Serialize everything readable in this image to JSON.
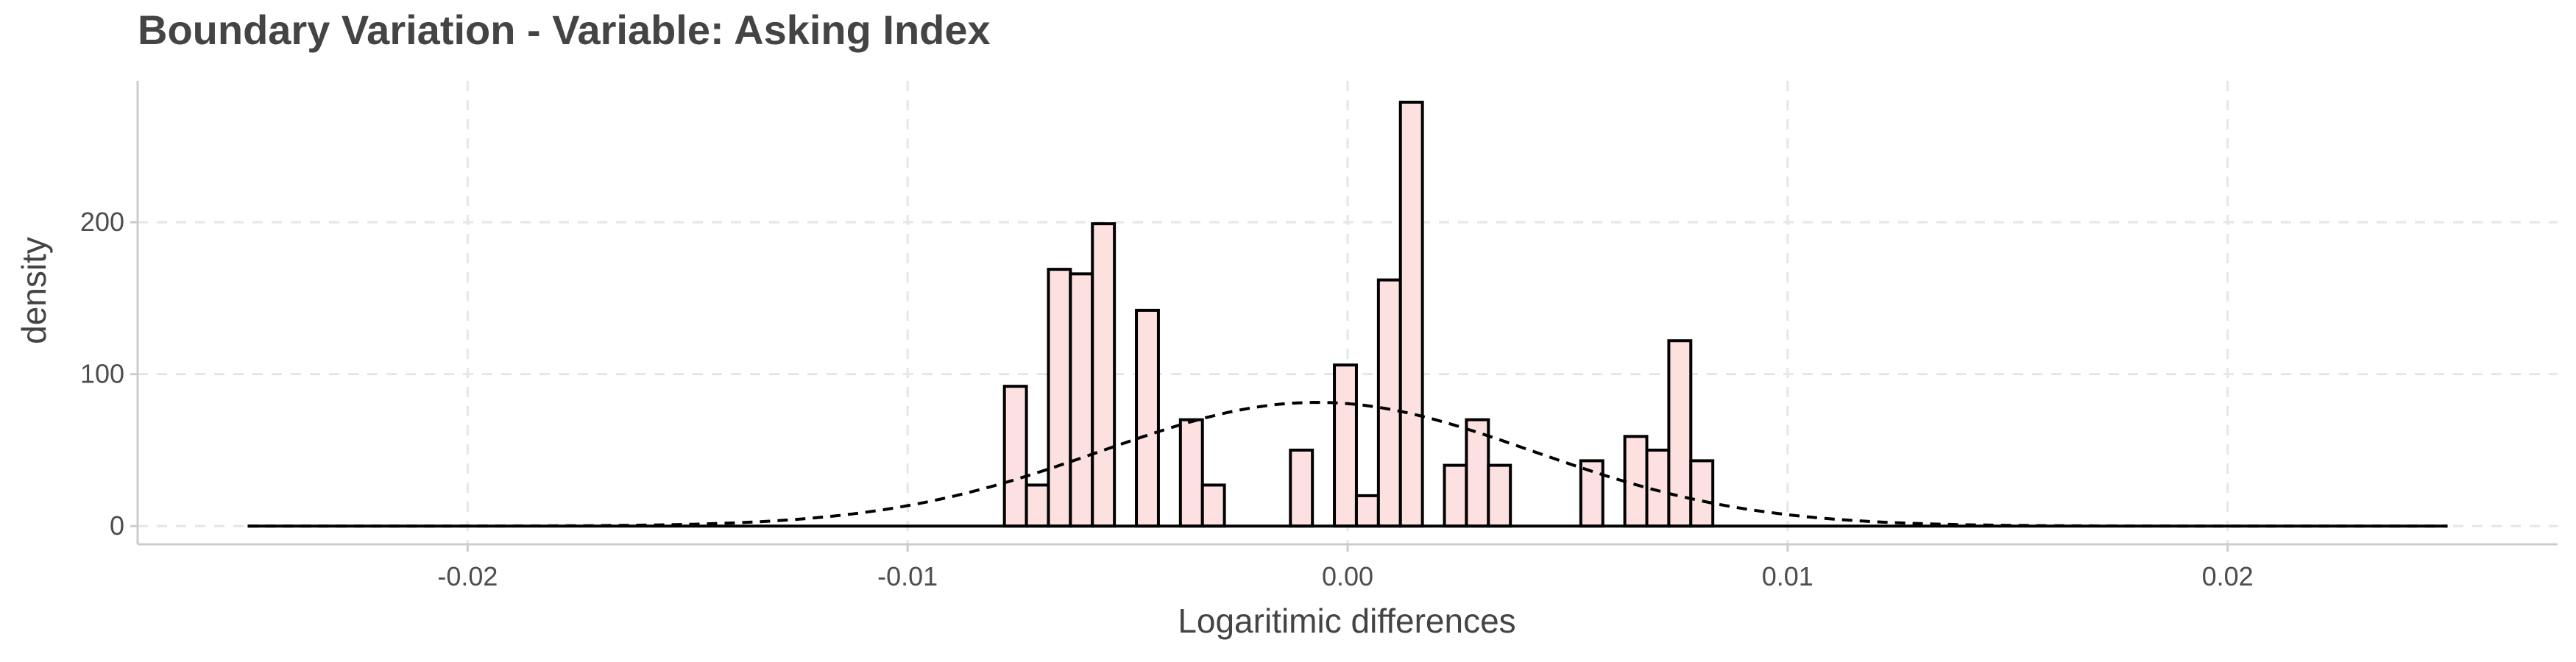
{
  "chart_data": {
    "type": "bar",
    "title": "Boundary Variation - Variable: Asking Index",
    "xlabel": "Logaritimic differences",
    "ylabel": "density",
    "xlim": [
      -0.0275,
      0.0275
    ],
    "ylim": [
      -12,
      293
    ],
    "x_ticks": [
      {
        "value": -0.02,
        "label": "-0.02"
      },
      {
        "value": -0.01,
        "label": "-0.01"
      },
      {
        "value": 0.0,
        "label": "0.00"
      },
      {
        "value": 0.01,
        "label": "0.01"
      },
      {
        "value": 0.02,
        "label": "0.02"
      }
    ],
    "y_ticks": [
      {
        "value": 0,
        "label": "0"
      },
      {
        "value": 100,
        "label": "100"
      },
      {
        "value": 200,
        "label": "200"
      }
    ],
    "grid": true,
    "legend": "none",
    "bin_width": 0.0005,
    "bins": [
      {
        "x_left": -0.0078,
        "density": 92
      },
      {
        "x_left": -0.0073,
        "density": 27
      },
      {
        "x_left": -0.0068,
        "density": 169
      },
      {
        "x_left": -0.0063,
        "density": 166
      },
      {
        "x_left": -0.0058,
        "density": 199
      },
      {
        "x_left": -0.0048,
        "density": 142
      },
      {
        "x_left": -0.0038,
        "density": 70
      },
      {
        "x_left": -0.0033,
        "density": 27
      },
      {
        "x_left": -0.0013,
        "density": 50
      },
      {
        "x_left": -0.0003,
        "density": 106
      },
      {
        "x_left": 0.0002,
        "density": 20
      },
      {
        "x_left": 0.0007,
        "density": 162
      },
      {
        "x_left": 0.0012,
        "density": 279
      },
      {
        "x_left": 0.0022,
        "density": 40
      },
      {
        "x_left": 0.0027,
        "density": 70
      },
      {
        "x_left": 0.0032,
        "density": 40
      },
      {
        "x_left": 0.0053,
        "density": 43
      },
      {
        "x_left": 0.0063,
        "density": 59
      },
      {
        "x_left": 0.0068,
        "density": 50
      },
      {
        "x_left": 0.0073,
        "density": 122
      },
      {
        "x_left": 0.0078,
        "density": 43
      }
    ],
    "baseline_range": [
      -0.025,
      0.025
    ],
    "density_curve": {
      "style": "dashed",
      "distribution": "normal",
      "mean": -0.0007,
      "sd": 0.0049
    },
    "colors": {
      "bar_fill": "#fde0e0",
      "bar_stroke": "#000000",
      "grid": "#e6e6e6",
      "axis_line": "#cccccc",
      "curve": "#000000"
    }
  }
}
